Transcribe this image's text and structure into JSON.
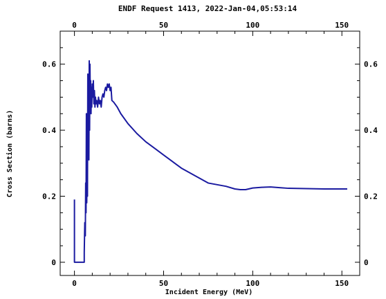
{
  "chart_data": {
    "type": "line",
    "title": "ENDF Request 1413, 2022-Jan-04,05:53:14",
    "xlabel": "Incident Energy (MeV)",
    "ylabel": "Cross Section (barns)",
    "xlim": [
      -8,
      160
    ],
    "ylim": [
      -0.04,
      0.7
    ],
    "x_ticks": [
      0,
      50,
      100,
      150
    ],
    "x_tick_labels": [
      "0",
      "50",
      "100",
      "150"
    ],
    "y_ticks": [
      0,
      0.2,
      0.4,
      0.6
    ],
    "y_tick_labels": [
      "0",
      "0.2",
      "0.4",
      "0.6"
    ],
    "grid": false,
    "series": [
      {
        "color": "#1a1aa0",
        "x": [
          0.0,
          0.0,
          5.5,
          5.5,
          5.8,
          6.1,
          6.3,
          6.5,
          6.7,
          6.9,
          7.1,
          7.3,
          7.5,
          7.7,
          7.9,
          8.1,
          8.3,
          8.5,
          8.7,
          8.9,
          9.1,
          9.3,
          9.5,
          9.7,
          10.0,
          10.3,
          10.6,
          10.9,
          11.2,
          11.5,
          11.8,
          12.1,
          12.5,
          13.0,
          13.5,
          14.0,
          14.5,
          15.0,
          15.5,
          16.0,
          16.5,
          17.0,
          17.5,
          18.0,
          18.5,
          19.0,
          19.5,
          20.0,
          20.5,
          21.0,
          22.0,
          24.0,
          26.0,
          30.0,
          35.0,
          40.0,
          45.0,
          50.0,
          55.0,
          60.0,
          65.0,
          70.0,
          75.0,
          80.0,
          85.0,
          90.0,
          93.0,
          96.0,
          100.0,
          105.0,
          110.0,
          115.0,
          120.0,
          130.0,
          140.0,
          150.0,
          153.0
        ],
        "y": [
          0.19,
          0.0,
          0.0,
          0.03,
          0.12,
          0.08,
          0.24,
          0.15,
          0.45,
          0.18,
          0.3,
          0.2,
          0.57,
          0.34,
          0.5,
          0.31,
          0.61,
          0.4,
          0.6,
          0.48,
          0.55,
          0.45,
          0.53,
          0.47,
          0.54,
          0.5,
          0.55,
          0.48,
          0.52,
          0.47,
          0.5,
          0.48,
          0.49,
          0.47,
          0.5,
          0.48,
          0.49,
          0.47,
          0.5,
          0.51,
          0.5,
          0.52,
          0.53,
          0.52,
          0.54,
          0.53,
          0.54,
          0.52,
          0.53,
          0.49,
          0.485,
          0.47,
          0.45,
          0.42,
          0.39,
          0.365,
          0.345,
          0.325,
          0.305,
          0.285,
          0.27,
          0.255,
          0.24,
          0.235,
          0.23,
          0.222,
          0.22,
          0.22,
          0.225,
          0.227,
          0.228,
          0.226,
          0.224,
          0.223,
          0.222,
          0.222,
          0.222
        ]
      }
    ]
  }
}
